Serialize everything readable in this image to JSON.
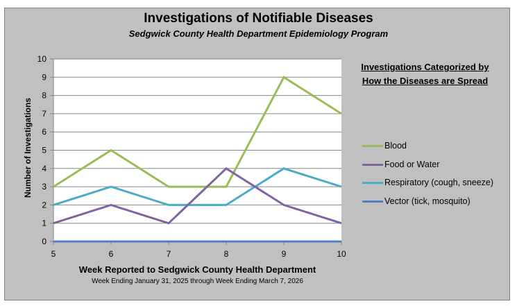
{
  "chart_data": {
    "type": "line",
    "title": "Investigations of Notifiable Diseases",
    "subtitle": "Sedgwick County Health Department Epidemiology Program",
    "xlabel": "Week Reported to Sedgwick County Health Department",
    "xsublabel": "Week Ending  January 31, 2025 through Week Ending  March 7, 2026",
    "ylabel": "Number of Investigations",
    "x": [
      5,
      6,
      7,
      8,
      9,
      10
    ],
    "xlim": [
      5,
      10
    ],
    "ylim": [
      0,
      10
    ],
    "yticks": [
      0,
      1,
      2,
      3,
      4,
      5,
      6,
      7,
      8,
      9,
      10
    ],
    "grid": true,
    "legend_title": "Investigations Categorized by How the Diseases are Spread",
    "legend_position": "right",
    "series": [
      {
        "name": "Blood",
        "color": "#9bbb59",
        "values": [
          3,
          5,
          3,
          3,
          9,
          7
        ]
      },
      {
        "name": "Food or Water",
        "color": "#8064a2",
        "values": [
          1,
          2,
          1,
          4,
          2,
          1
        ]
      },
      {
        "name": "Respiratory (cough, sneeze)",
        "color": "#4bacc6",
        "values": [
          2,
          3,
          2,
          2,
          4,
          3
        ]
      },
      {
        "name": "Vector (tick, mosquito)",
        "color": "#4f81bd",
        "values": [
          0,
          0,
          0,
          0,
          0,
          0
        ]
      }
    ]
  }
}
